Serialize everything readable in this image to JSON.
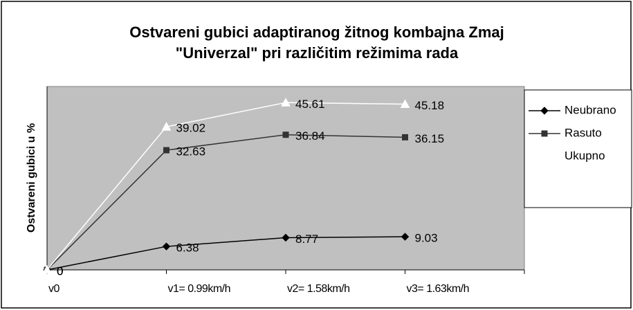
{
  "chart_data": {
    "type": "line",
    "title": [
      "Ostvareni gubici adaptiranog žitnog kombajna Zmaj",
      "\"Univerzal\" pri različitim režimima rada"
    ],
    "y_label": "Ostvareni gubici u %",
    "categories": [
      "v0",
      "v1= 0.99km/h",
      "v2= 1.58km/h",
      "v3= 1.63km/h"
    ],
    "ylim": [
      0,
      50
    ],
    "grid": false,
    "legend": "right",
    "series": [
      {
        "name": "Neubrano",
        "color": "#000000",
        "marker": "diamond",
        "values": [
          0,
          6.38,
          8.77,
          9.03
        ]
      },
      {
        "name": "Rasuto",
        "color": "#333333",
        "marker": "square",
        "values": [
          0,
          32.63,
          36.84,
          36.15
        ]
      },
      {
        "name": "Ukupno",
        "color": "#ffffff",
        "marker": "triangle",
        "values": [
          0,
          39.02,
          45.61,
          45.18
        ]
      }
    ]
  }
}
